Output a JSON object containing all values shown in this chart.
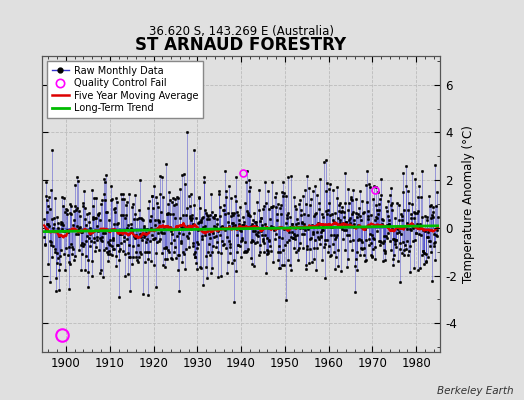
{
  "title": "ST ARNAUD FORESTRY",
  "subtitle": "36.620 S, 143.269 E (Australia)",
  "ylabel": "Temperature Anomaly (°C)",
  "xlabel_label": "Berkeley Earth",
  "year_start": 1895,
  "year_end": 1984,
  "ylim": [
    -5.2,
    7.2
  ],
  "yticks": [
    -4,
    -2,
    0,
    2,
    4,
    6
  ],
  "background_color": "#e0e0e0",
  "plot_bg_color": "#e0e0e0",
  "raw_line_color": "#3333cc",
  "raw_marker_color": "#000000",
  "moving_avg_color": "#dd0000",
  "trend_color": "#00bb00",
  "qc_fail_color": "#ff00ff",
  "seed": 12345,
  "noise_std": 1.05,
  "qc_points": [
    [
      1899.08,
      -4.5
    ],
    [
      1940.5,
      2.3
    ],
    [
      1970.5,
      1.6
    ]
  ]
}
